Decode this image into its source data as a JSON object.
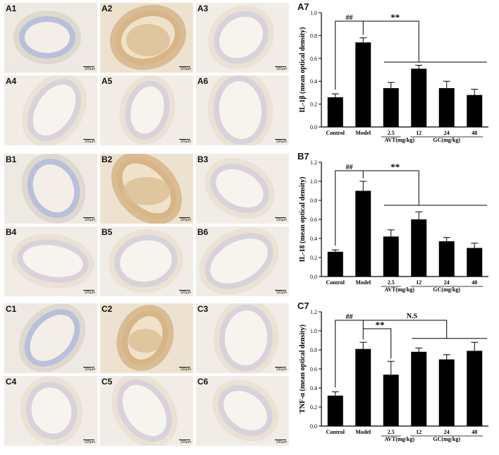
{
  "micrographs": [
    {
      "label": "A1",
      "scale": "100μm",
      "tone": "blue"
    },
    {
      "label": "A2",
      "scale": "100μm",
      "tone": "brown"
    },
    {
      "label": "A3",
      "scale": "100μm",
      "tone": "light"
    },
    {
      "label": "A4",
      "scale": "100μm",
      "tone": "light"
    },
    {
      "label": "A5",
      "scale": "100μm",
      "tone": "light"
    },
    {
      "label": "A6",
      "scale": "100μm",
      "tone": "light"
    },
    {
      "label": "B1",
      "scale": "100μm",
      "tone": "blue"
    },
    {
      "label": "B2",
      "scale": "100μm",
      "tone": "brown"
    },
    {
      "label": "B3",
      "scale": "100μm",
      "tone": "light"
    },
    {
      "label": "B4",
      "scale": "100μm",
      "tone": "light"
    },
    {
      "label": "B5",
      "scale": "100μm",
      "tone": "light"
    },
    {
      "label": "B6",
      "scale": "100μm",
      "tone": "light"
    },
    {
      "label": "C1",
      "scale": "100μm",
      "tone": "blue"
    },
    {
      "label": "C2",
      "scale": "100μm",
      "tone": "brown"
    },
    {
      "label": "C3",
      "scale": "100μm",
      "tone": "light"
    },
    {
      "label": "C4",
      "scale": "100μm",
      "tone": "light"
    },
    {
      "label": "C5",
      "scale": "100μm",
      "tone": "light"
    },
    {
      "label": "C6",
      "scale": "100μm",
      "tone": "light"
    }
  ],
  "chart_data": [
    {
      "panel": "A7",
      "type": "bar",
      "categories": [
        "Control",
        "Model",
        "2.5",
        "12",
        "24",
        "48"
      ],
      "values": [
        0.26,
        0.74,
        0.34,
        0.51,
        0.34,
        0.28
      ],
      "errors": [
        0.03,
        0.04,
        0.05,
        0.03,
        0.06,
        0.05
      ],
      "ylabel": "IL-1β (mean optical density)",
      "ylim": [
        0,
        1.0
      ],
      "yticks": [
        "0.0",
        "0.2",
        "0.4",
        "0.6",
        "0.8",
        "1.0"
      ],
      "group_labels": [
        "AVT(mg/kg)",
        "GC(mg/kg)"
      ],
      "annotations": {
        "hash": "##",
        "star": "**",
        "star_spans_to": "12"
      }
    },
    {
      "panel": "B7",
      "type": "bar",
      "categories": [
        "Control",
        "Model",
        "2.5",
        "12",
        "24",
        "48"
      ],
      "values": [
        0.26,
        0.9,
        0.42,
        0.6,
        0.37,
        0.3
      ],
      "errors": [
        0.02,
        0.1,
        0.07,
        0.08,
        0.04,
        0.05
      ],
      "ylabel": "IL-18 (mean optical density)",
      "ylim": [
        0,
        1.2
      ],
      "yticks": [
        "0.0",
        "0.2",
        "0.4",
        "0.6",
        "0.8",
        "1.0",
        "1.2"
      ],
      "group_labels": [
        "AVT(mg/kg)",
        "GC(mg/kg)"
      ],
      "annotations": {
        "hash": "##",
        "star": "**",
        "star_spans_to": "12"
      }
    },
    {
      "panel": "C7",
      "type": "bar",
      "categories": [
        "Control",
        "Model",
        "2.5",
        "12",
        "24",
        "48"
      ],
      "values": [
        0.32,
        0.81,
        0.54,
        0.78,
        0.7,
        0.79
      ],
      "errors": [
        0.04,
        0.07,
        0.14,
        0.04,
        0.05,
        0.09
      ],
      "ylabel": "TNF-α (mean optical density)",
      "ylim": [
        0,
        1.2
      ],
      "yticks": [
        "0.0",
        "0.2",
        "0.4",
        "0.6",
        "0.8",
        "1.0",
        "1.2"
      ],
      "group_labels": [
        "AVT(mg/kg)",
        "GC(mg/kg)"
      ],
      "annotations": {
        "hash": "##",
        "star": "**",
        "ns": "N.S",
        "star_spans_to": "2.5"
      }
    }
  ]
}
